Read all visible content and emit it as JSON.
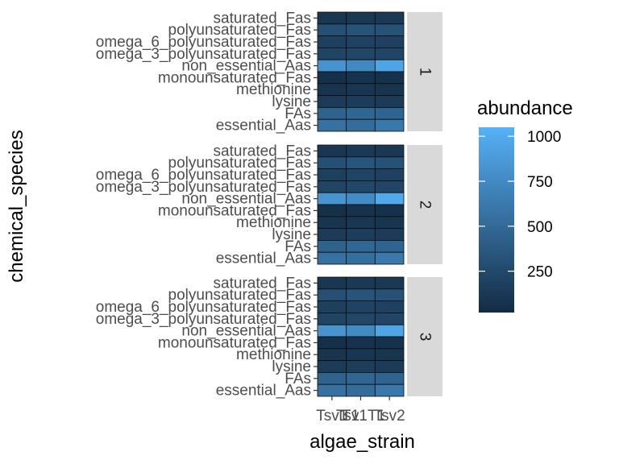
{
  "chart_data": {
    "type": "heatmap",
    "xlabel": "algae_strain",
    "ylabel": "chemical_species",
    "x_categories": [
      "Tsv1",
      "T1",
      "Tsv1T1",
      "Tsv2"
    ],
    "x_positions": [
      "Tsv1",
      "Tsv1T1",
      "Tsv2"
    ],
    "x_tick_labels": [
      "Tsv1",
      "T1",
      "Tsv1T1",
      "Tsv2"
    ],
    "y_categories": [
      "saturated_Fas",
      "polyunsaturated_Fas",
      "omega_6_polyunsaturated_Fas",
      "omega_3_polyunsaturated_Fas",
      "non_essential_Aas",
      "monounsaturated_Fas",
      "methionine",
      "lysine",
      "FAs",
      "essential_Aas"
    ],
    "facets": [
      {
        "label": "1",
        "values": [
          [
            110,
            120,
            130
          ],
          [
            300,
            330,
            320
          ],
          [
            180,
            200,
            190
          ],
          [
            210,
            230,
            220
          ],
          [
            820,
            740,
            950
          ],
          [
            60,
            70,
            65
          ],
          [
            90,
            100,
            95
          ],
          [
            140,
            150,
            145
          ],
          [
            450,
            470,
            460
          ],
          [
            560,
            520,
            610
          ]
        ]
      },
      {
        "label": "2",
        "values": [
          [
            110,
            130,
            120
          ],
          [
            300,
            340,
            320
          ],
          [
            180,
            210,
            190
          ],
          [
            210,
            240,
            220
          ],
          [
            830,
            760,
            980
          ],
          [
            60,
            75,
            65
          ],
          [
            90,
            105,
            95
          ],
          [
            140,
            160,
            145
          ],
          [
            450,
            480,
            460
          ],
          [
            560,
            540,
            620
          ]
        ]
      },
      {
        "label": "3",
        "values": [
          [
            110,
            125,
            120
          ],
          [
            300,
            335,
            320
          ],
          [
            180,
            205,
            190
          ],
          [
            210,
            235,
            220
          ],
          [
            830,
            750,
            960
          ],
          [
            60,
            72,
            65
          ],
          [
            90,
            102,
            95
          ],
          [
            140,
            155,
            145
          ],
          [
            450,
            475,
            460
          ],
          [
            560,
            530,
            615
          ]
        ]
      }
    ],
    "color_scale": {
      "low": "#132b43",
      "high": "#56b1f7",
      "limits": [
        20,
        1050
      ]
    },
    "legend": {
      "title": "abundance",
      "breaks": [
        250,
        500,
        750,
        1000
      ],
      "position": "right"
    },
    "grid": false
  }
}
